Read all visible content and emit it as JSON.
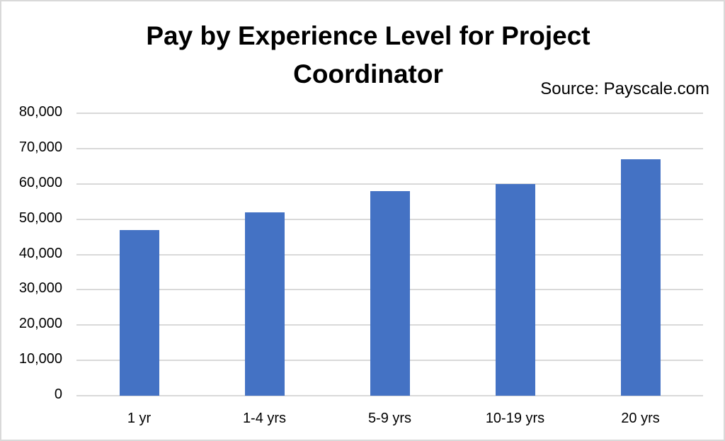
{
  "chart_data": {
    "type": "bar",
    "title": "Pay by Experience Level for Project Coordinator",
    "title_lines": [
      "Pay by Experience Level for Project",
      "Coordinator"
    ],
    "annotation": "Source: Payscale.com",
    "xlabel": "",
    "ylabel": "",
    "categories": [
      "1 yr",
      "1-4 yrs",
      "5-9 yrs",
      "10-19 yrs",
      "20 yrs"
    ],
    "values": [
      47000,
      52000,
      58000,
      60000,
      67000
    ],
    "ylim": [
      0,
      80000
    ],
    "yticks": [
      "0",
      "10,000",
      "20,000",
      "30,000",
      "40,000",
      "50,000",
      "60,000",
      "70,000",
      "80,000"
    ],
    "grid": true,
    "legend": "none",
    "bar_color": "#4472c4"
  }
}
